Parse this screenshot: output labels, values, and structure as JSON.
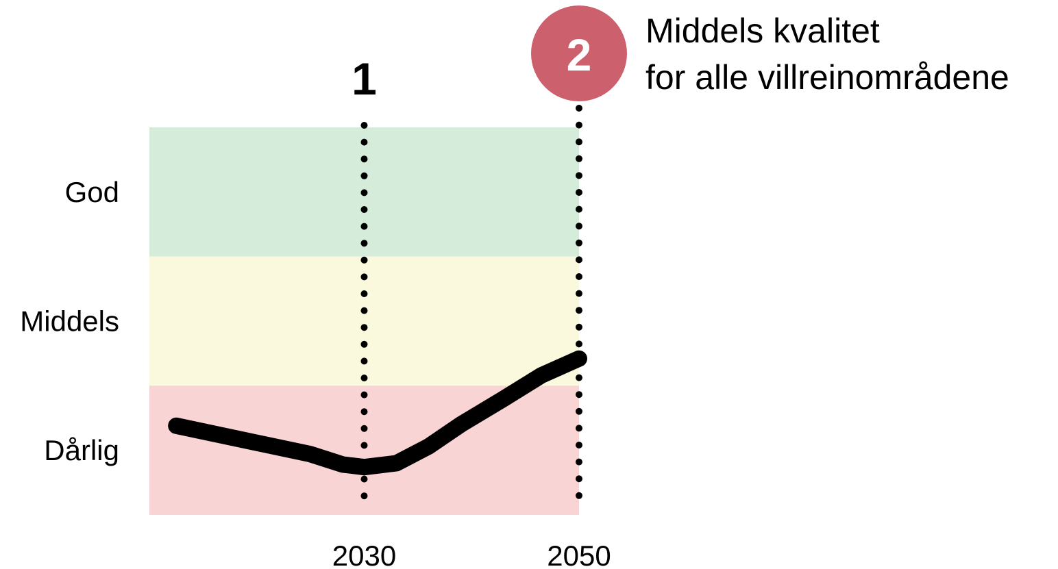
{
  "chart_data": {
    "type": "line",
    "title": "",
    "xlabel": "",
    "ylabel": "",
    "xlim": [
      2010,
      2050
    ],
    "x_ticks": [
      2030,
      2050
    ],
    "quality_levels": [
      "Dårlig",
      "Middels",
      "God"
    ],
    "ylim": [
      0,
      3
    ],
    "bands": [
      {
        "label": "God",
        "from": 2,
        "to": 3,
        "color": "#d5ecdb"
      },
      {
        "label": "Middels",
        "from": 1,
        "to": 2,
        "color": "#fbf9dd"
      },
      {
        "label": "Dårlig",
        "from": 0,
        "to": 1,
        "color": "#f9d4d4"
      }
    ],
    "series": [
      {
        "color": "#000000",
        "x": [
          2012.5,
          2025,
          2028,
          2030,
          2033,
          2036,
          2039,
          2043,
          2046.5,
          2050
        ],
        "y": [
          0.69,
          0.47,
          0.39,
          0.37,
          0.4,
          0.53,
          0.7,
          0.9,
          1.08,
          1.21
        ]
      }
    ],
    "markers": [
      {
        "x": 2030,
        "label": "1",
        "style": "plain",
        "text_color": "#000000"
      },
      {
        "x": 2050,
        "label": "2",
        "style": "circle",
        "circle_color": "#cd606d",
        "text_color": "#ffffff"
      }
    ],
    "annotation": {
      "lines": [
        "Middels kvalitet",
        "for alle villreinområdene"
      ]
    }
  }
}
